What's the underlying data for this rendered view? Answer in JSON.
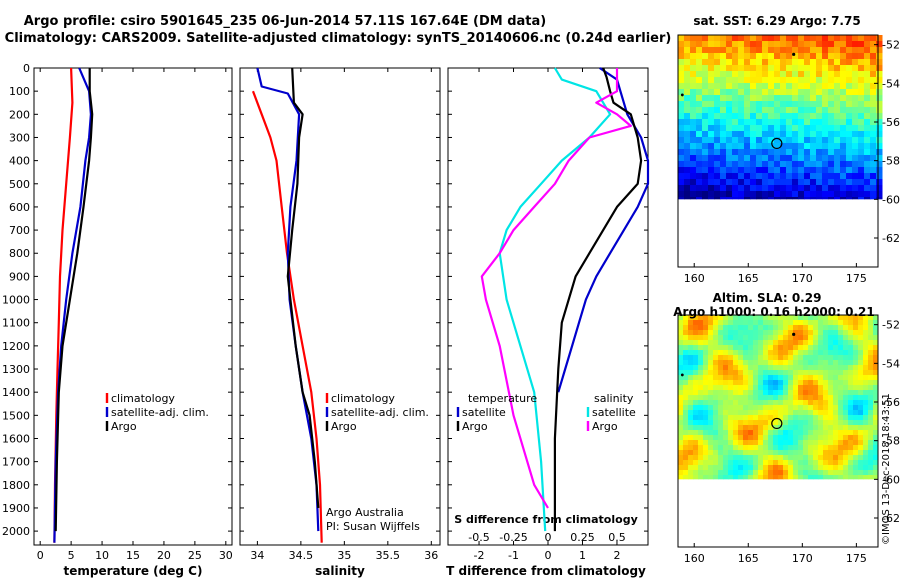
{
  "header": {
    "title_line1": "Argo profile: csiro 5901645_235 06-Jun-2014 57.11S 167.64E (DM data)",
    "title_line2": "Climatology: CARS2009. Satellite-adjusted climatology: synTS_20140606.nc (0.24d earlier)"
  },
  "colors": {
    "climatology": "#ff0000",
    "satellite_adj": "#0000cc",
    "argo": "#000000",
    "salinity_satellite": "#00e5e5",
    "salinity_argo": "#ff00ff"
  },
  "side": {
    "sst_title": "sat. SST: 6.29 Argo: 7.75",
    "sla_title1": "Altim. SLA: 0.29",
    "sla_title2": "Argo h1000: 0.16 h2000: 0.21",
    "stamp": "©IMOS 13-Dec-2018 18:43:51",
    "float_marker": "circle-marker"
  },
  "credits": {
    "line1": "Argo Australia",
    "line2": "PI: Susan Wijffels"
  },
  "chart_data": [
    {
      "id": "temperature",
      "type": "line",
      "xlabel": "temperature (deg C)",
      "ylabel": "",
      "xlim": [
        -1,
        31
      ],
      "ylim": [
        2060,
        0
      ],
      "xticks": [
        "0",
        "5",
        "10",
        "15",
        "20",
        "25",
        "30"
      ],
      "yticks": [
        "0",
        "100",
        "200",
        "300",
        "400",
        "500",
        "600",
        "700",
        "800",
        "900",
        "1000",
        "1100",
        "1200",
        "1300",
        "1400",
        "1500",
        "1600",
        "1700",
        "1800",
        "1900",
        "2000"
      ],
      "legend": {
        "position": "lower-right",
        "entries": [
          "climatology",
          "satellite-adj. clim.",
          "Argo"
        ]
      },
      "series": [
        {
          "name": "climatology",
          "color": "#ff0000",
          "points": [
            [
              5.0,
              0
            ],
            [
              5.2,
              150
            ],
            [
              4.8,
              300
            ],
            [
              4.2,
              500
            ],
            [
              3.6,
              700
            ],
            [
              3.2,
              900
            ],
            [
              3.0,
              1100
            ],
            [
              2.8,
              1300
            ],
            [
              2.6,
              1500
            ],
            [
              2.4,
              1800
            ],
            [
              2.3,
              2050
            ]
          ]
        },
        {
          "name": "satellite-adj. clim.",
          "color": "#0000cc",
          "points": [
            [
              6.3,
              0
            ],
            [
              7.9,
              100
            ],
            [
              8.2,
              200
            ],
            [
              7.9,
              300
            ],
            [
              7.3,
              400
            ],
            [
              6.5,
              600
            ],
            [
              5.2,
              800
            ],
            [
              4.2,
              1000
            ],
            [
              3.4,
              1200
            ],
            [
              2.9,
              1400
            ],
            [
              2.5,
              1700
            ],
            [
              2.3,
              2050
            ]
          ]
        },
        {
          "name": "Argo",
          "color": "#000000",
          "points": [
            [
              8.0,
              0
            ],
            [
              8.0,
              100
            ],
            [
              8.4,
              200
            ],
            [
              8.2,
              300
            ],
            [
              7.9,
              400
            ],
            [
              7.0,
              600
            ],
            [
              6.0,
              800
            ],
            [
              4.8,
              1000
            ],
            [
              3.6,
              1200
            ],
            [
              3.0,
              1400
            ],
            [
              2.7,
              1700
            ],
            [
              2.5,
              2000
            ]
          ]
        }
      ]
    },
    {
      "id": "salinity",
      "type": "line",
      "xlabel": "salinity",
      "ylabel": "",
      "xlim": [
        33.8,
        36.1
      ],
      "ylim": [
        2060,
        0
      ],
      "xticks": [
        "34",
        "34.5",
        "35",
        "35.5",
        "36"
      ],
      "legend": {
        "position": "lower-right",
        "entries": [
          "climatology",
          "satellite-adj. clim.",
          "Argo"
        ]
      },
      "series": [
        {
          "name": "climatology",
          "color": "#ff0000",
          "points": [
            [
              33.95,
              100
            ],
            [
              34.05,
              200
            ],
            [
              34.15,
              300
            ],
            [
              34.22,
              400
            ],
            [
              34.28,
              600
            ],
            [
              34.34,
              800
            ],
            [
              34.42,
              1000
            ],
            [
              34.52,
              1200
            ],
            [
              34.62,
              1400
            ],
            [
              34.68,
              1600
            ],
            [
              34.72,
              1800
            ],
            [
              34.74,
              2050
            ]
          ]
        },
        {
          "name": "satellite-adj. clim.",
          "color": "#0000cc",
          "points": [
            [
              34.0,
              0
            ],
            [
              34.05,
              80
            ],
            [
              34.35,
              110
            ],
            [
              34.48,
              200
            ],
            [
              34.45,
              400
            ],
            [
              34.38,
              600
            ],
            [
              34.35,
              800
            ],
            [
              34.37,
              1000
            ],
            [
              34.44,
              1200
            ],
            [
              34.52,
              1400
            ],
            [
              34.62,
              1600
            ],
            [
              34.68,
              1800
            ],
            [
              34.7,
              2000
            ]
          ]
        },
        {
          "name": "Argo",
          "color": "#000000",
          "points": [
            [
              34.4,
              0
            ],
            [
              34.42,
              150
            ],
            [
              34.52,
              200
            ],
            [
              34.48,
              300
            ],
            [
              34.46,
              500
            ],
            [
              34.4,
              700
            ],
            [
              34.35,
              900
            ],
            [
              34.38,
              1000
            ],
            [
              34.44,
              1200
            ],
            [
              34.52,
              1400
            ],
            [
              34.6,
              1500
            ],
            [
              34.66,
              1700
            ],
            [
              34.7,
              1900
            ]
          ]
        }
      ]
    },
    {
      "id": "difference",
      "type": "line",
      "xlabel": "T difference from climatology",
      "xlabel_top": "S difference from climatology",
      "xlim": [
        -2.9,
        2.9
      ],
      "ylim": [
        2060,
        0
      ],
      "xticks": [
        "-2",
        "-1",
        "0",
        "1",
        "2"
      ],
      "sticks": [
        "-0.5",
        "-0.25",
        "0",
        "0.25",
        "0.5"
      ],
      "legend_temperature": {
        "position": "lower-left",
        "title": "temperature",
        "entries": [
          "satellite",
          "Argo"
        ]
      },
      "legend_salinity": {
        "position": "lower-right",
        "title": "salinity",
        "entries": [
          "satellite",
          "Argo"
        ]
      },
      "series": [
        {
          "name": "temperature satellite",
          "color": "#0000cc",
          "points": [
            [
              1.5,
              0
            ],
            [
              2.0,
              50
            ],
            [
              2.1,
              100
            ],
            [
              2.3,
              200
            ],
            [
              2.7,
              300
            ],
            [
              2.9,
              400
            ],
            [
              2.9,
              500
            ],
            [
              2.6,
              600
            ],
            [
              2.2,
              700
            ],
            [
              1.8,
              800
            ],
            [
              1.4,
              900
            ],
            [
              1.1,
              1000
            ],
            [
              0.9,
              1100
            ],
            [
              0.7,
              1200
            ],
            [
              0.5,
              1300
            ],
            [
              0.3,
              1400
            ]
          ]
        },
        {
          "name": "temperature Argo",
          "color": "#000000",
          "points": [
            [
              1.6,
              0
            ],
            [
              1.7,
              40
            ],
            [
              1.8,
              100
            ],
            [
              1.9,
              150
            ],
            [
              2.4,
              200
            ],
            [
              2.6,
              300
            ],
            [
              2.7,
              400
            ],
            [
              2.6,
              500
            ],
            [
              2.0,
              600
            ],
            [
              1.6,
              700
            ],
            [
              1.2,
              800
            ],
            [
              0.8,
              900
            ],
            [
              0.6,
              1000
            ],
            [
              0.4,
              1100
            ],
            [
              0.3,
              1300
            ],
            [
              0.2,
              1600
            ],
            [
              0.2,
              2000
            ]
          ]
        },
        {
          "name": "salinity satellite",
          "color": "#00e5e5",
          "points": [
            [
              0.05,
              0
            ],
            [
              0.1,
              50
            ],
            [
              0.35,
              100
            ],
            [
              0.45,
              200
            ],
            [
              0.3,
              300
            ],
            [
              0.1,
              400
            ],
            [
              -0.05,
              500
            ],
            [
              -0.2,
              600
            ],
            [
              -0.3,
              700
            ],
            [
              -0.35,
              800
            ],
            [
              -0.3,
              1000
            ],
            [
              -0.2,
              1200
            ],
            [
              -0.1,
              1400
            ],
            [
              -0.05,
              1700
            ],
            [
              -0.02,
              2000
            ]
          ]
        },
        {
          "name": "salinity Argo",
          "color": "#ff00ff",
          "points": [
            [
              0.5,
              0
            ],
            [
              0.5,
              100
            ],
            [
              0.35,
              150
            ],
            [
              0.5,
              200
            ],
            [
              0.6,
              250
            ],
            [
              0.3,
              300
            ],
            [
              0.15,
              400
            ],
            [
              0.05,
              500
            ],
            [
              -0.1,
              600
            ],
            [
              -0.25,
              700
            ],
            [
              -0.35,
              800
            ],
            [
              -0.48,
              900
            ],
            [
              -0.45,
              1000
            ],
            [
              -0.35,
              1200
            ],
            [
              -0.25,
              1500
            ],
            [
              -0.1,
              1800
            ],
            [
              0.0,
              1900
            ]
          ]
        }
      ]
    },
    {
      "id": "sst-map",
      "type": "heatmap",
      "title": "sat. SST: 6.29 Argo: 7.75",
      "xlim": [
        158.5,
        177
      ],
      "ylim": [
        -63.5,
        -51.5
      ],
      "xticks": [
        "160",
        "165",
        "170",
        "175"
      ],
      "yticks": [
        "-52",
        "-54",
        "-56",
        "-58",
        "-60",
        "-62"
      ],
      "float_position": [
        167.64,
        -57.11
      ]
    },
    {
      "id": "sla-map",
      "type": "heatmap",
      "title": "Altim. SLA: 0.29",
      "subtitle": "Argo h1000: 0.16 h2000: 0.21",
      "xlim": [
        158.5,
        177
      ],
      "ylim": [
        -63.5,
        -51.5
      ],
      "xticks": [
        "160",
        "165",
        "170",
        "175"
      ],
      "yticks": [
        "-52",
        "-54",
        "-56",
        "-58",
        "-60",
        "-62"
      ],
      "float_position": [
        167.64,
        -57.11
      ]
    }
  ]
}
